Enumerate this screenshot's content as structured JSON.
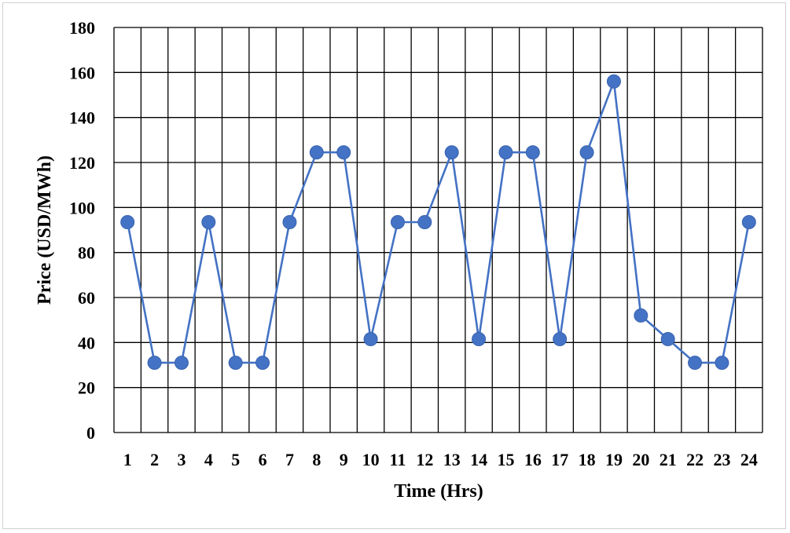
{
  "chart_data": {
    "type": "line",
    "title": "",
    "xlabel": "Time (Hrs)",
    "ylabel": "Price (USD/MWh)",
    "x": [
      1,
      2,
      3,
      4,
      5,
      6,
      7,
      8,
      9,
      10,
      11,
      12,
      13,
      14,
      15,
      16,
      17,
      18,
      19,
      20,
      21,
      22,
      23,
      24
    ],
    "series": [
      {
        "values": [
          93.5,
          31,
          31,
          93.5,
          31,
          31,
          93.5,
          124.5,
          124.5,
          41.5,
          93.5,
          93.5,
          124.5,
          41.5,
          124.5,
          124.5,
          41.5,
          124.5,
          156,
          52,
          41.5,
          31,
          31,
          93.5
        ]
      }
    ],
    "ylim": [
      0,
      180
    ],
    "y_ticks": [
      0,
      20,
      40,
      60,
      80,
      100,
      120,
      140,
      160,
      180
    ],
    "grid": true,
    "legend": "none",
    "colors": {
      "line": "#4472C4",
      "marker": "#4472C4",
      "grid": "#000000"
    }
  }
}
